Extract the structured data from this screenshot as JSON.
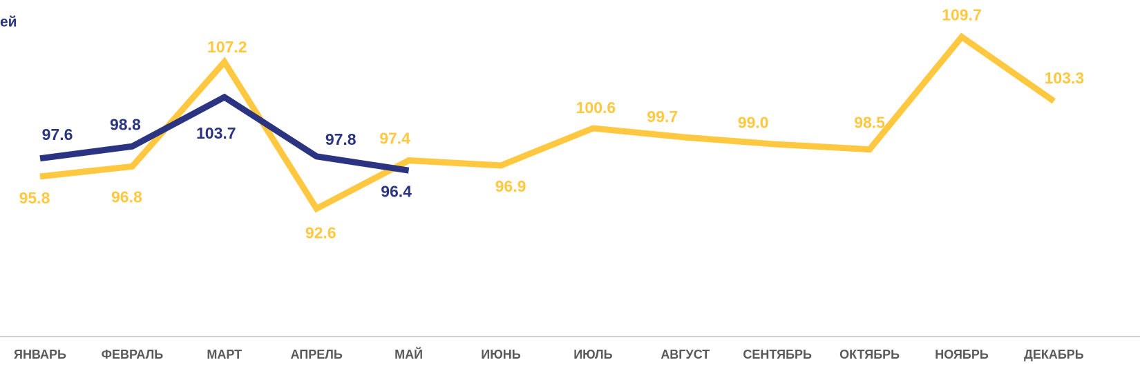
{
  "chart_data": {
    "type": "line",
    "title": "ей",
    "categories": [
      "ЯНВАРЬ",
      "ФЕВРАЛЬ",
      "МАРТ",
      "АПРЕЛЬ",
      "МАЙ",
      "ИЮНЬ",
      "ИЮЛЬ",
      "АВГУСТ",
      "СЕНТЯБРЬ",
      "ОКТЯБРЬ",
      "НОЯБРЬ",
      "ДЕКАБРЬ"
    ],
    "series": [
      {
        "color": "#FFC840",
        "values": [
          95.8,
          96.8,
          107.2,
          92.6,
          97.4,
          96.9,
          100.6,
          99.7,
          99.0,
          98.5,
          109.7,
          103.3
        ],
        "value_labels": [
          "95.8",
          "96.8",
          "107.2",
          "92.6",
          "97.4",
          "96.9",
          "100.6",
          "99.7",
          "99.0",
          "98.5",
          "109.7",
          "103.3"
        ]
      },
      {
        "color": "#2B3481",
        "values": [
          97.6,
          98.8,
          103.7,
          97.8,
          96.4,
          null,
          null,
          null,
          null,
          null,
          null,
          null
        ],
        "value_labels": [
          "97.6",
          "98.8",
          "103.7",
          "97.8",
          "96.4",
          null,
          null,
          null,
          null,
          null,
          null,
          null
        ]
      }
    ],
    "ylim": [
      80,
      112
    ],
    "grid": false
  }
}
